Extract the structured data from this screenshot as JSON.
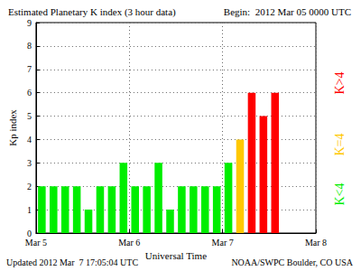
{
  "chart_data": {
    "type": "bar",
    "title": "Estimated Planetary K index (3 hour data)",
    "x_label": "Universal Time",
    "y_label": "Kp index",
    "x": [
      1.5,
      4.5,
      7.5,
      10.5,
      13.5,
      16.5,
      19.5,
      22.5,
      25.5,
      28.5,
      31.5,
      34.5,
      37.5,
      40.5,
      43.5,
      46.5,
      49.5,
      52.5,
      55.5,
      58.5,
      61.5
    ],
    "values": [
      2,
      2,
      2,
      2,
      1,
      2,
      2,
      3,
      2,
      2,
      3,
      1,
      2,
      2,
      2,
      2,
      3,
      4,
      6,
      5,
      6
    ],
    "colors": [
      "#00ee00",
      "#00ee00",
      "#00ee00",
      "#00ee00",
      "#00ee00",
      "#00ee00",
      "#00ee00",
      "#00ee00",
      "#00ee00",
      "#00ee00",
      "#00ee00",
      "#00ee00",
      "#00ee00",
      "#00ee00",
      "#00ee00",
      "#00ee00",
      "#00ee00",
      "#ffc800",
      "#ff0000",
      "#ff0000",
      "#ff0000"
    ],
    "xlim": [
      0,
      72
    ],
    "xticks": [
      {
        "value": 0,
        "label": "Mar 5"
      },
      {
        "value": 24,
        "label": "Mar 6"
      },
      {
        "value": 48,
        "label": "Mar 7"
      },
      {
        "value": 72,
        "label": "Mar 8"
      }
    ],
    "ylim": [
      0,
      9
    ],
    "yticks": [
      0,
      1,
      2,
      3,
      4,
      5,
      6,
      7,
      8,
      9
    ],
    "grid": true,
    "annotations": [
      {
        "text": "Begin:  2012 Mar 05 0000 UTC"
      },
      {
        "text": "Updated 2012 Mar  7 17:05:04 UTC"
      },
      {
        "text": "NOAA/SWPC Boulder, CO USA"
      },
      {
        "text": "K<4",
        "color": "#00ee00"
      },
      {
        "text": "K=4",
        "color": "#ffc800"
      },
      {
        "text": "K>4",
        "color": "#ff0000"
      }
    ]
  }
}
